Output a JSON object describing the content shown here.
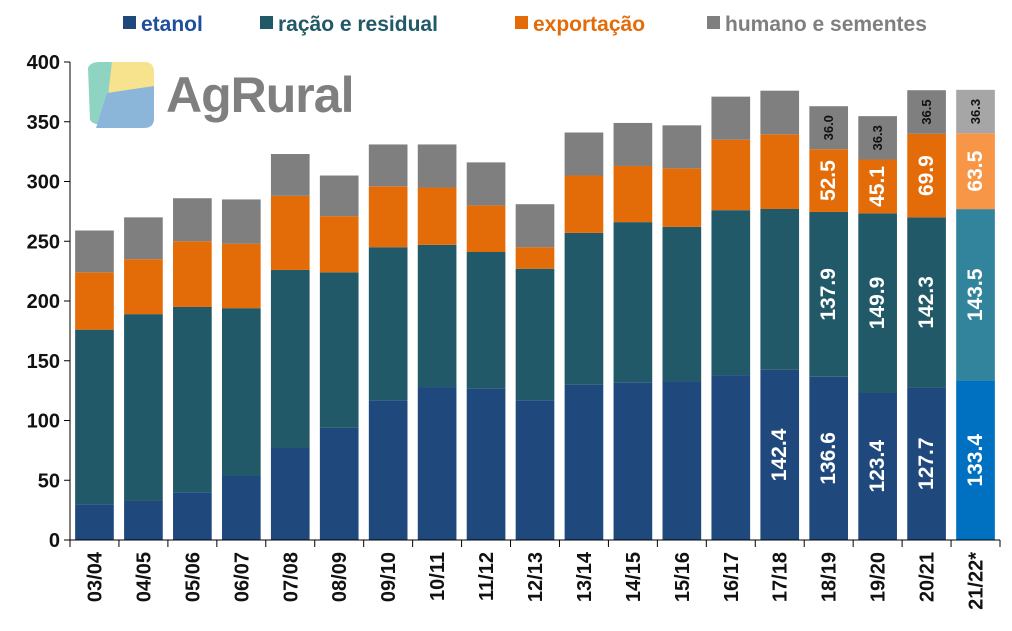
{
  "chart_data": {
    "type": "bar",
    "stacked": true,
    "title": "",
    "xlabel": "",
    "ylabel": "",
    "ylim": [
      0,
      400
    ],
    "yticks": [
      0,
      50,
      100,
      150,
      200,
      250,
      300,
      350,
      400
    ],
    "grid": false,
    "legend_position": "top",
    "categories": [
      "03/04",
      "04/05",
      "05/06",
      "06/07",
      "07/08",
      "08/09",
      "09/10",
      "10/11",
      "11/12",
      "12/13",
      "13/14",
      "14/15",
      "15/16",
      "16/17",
      "17/18",
      "18/19",
      "19/20",
      "20/21",
      "21/22*"
    ],
    "series": [
      {
        "name": "etanol",
        "color": "#1f497d",
        "highlight_color": "#0070c0",
        "values": [
          30,
          33,
          40,
          54,
          77,
          94,
          117,
          128,
          127,
          117,
          130,
          132,
          133,
          138,
          142.4,
          136.6,
          123.4,
          127.7,
          133.4
        ]
      },
      {
        "name": "ração e residual",
        "color": "#215968",
        "highlight_color": "#31849b",
        "values": [
          146,
          156,
          155,
          140,
          149,
          130,
          128,
          119,
          114,
          110,
          127,
          134,
          129,
          138,
          134.6,
          137.9,
          149.9,
          142.3,
          143.5
        ]
      },
      {
        "name": "exportação",
        "color": "#e36c09",
        "highlight_color": "#f79646",
        "values": [
          48,
          46,
          55,
          54,
          62,
          47,
          51,
          48,
          39,
          18,
          48,
          47,
          49,
          59,
          62.5,
          52.5,
          45.1,
          69.9,
          63.5
        ]
      },
      {
        "name": "humano e sementes",
        "color": "#7f7f7f",
        "highlight_color": "#a6a6a6",
        "values": [
          35,
          35,
          36,
          37,
          35,
          34,
          35,
          36,
          36,
          36,
          36,
          36,
          36,
          36,
          36.5,
          36.0,
          36.3,
          36.5,
          36.3
        ]
      }
    ],
    "highlight_category": "21/22*",
    "data_labels": [
      {
        "category": "17/18",
        "series": "etanol",
        "text": "142.4"
      },
      {
        "category": "18/19",
        "series": "etanol",
        "text": "136.6"
      },
      {
        "category": "18/19",
        "series": "ração e residual",
        "text": "137.9"
      },
      {
        "category": "18/19",
        "series": "exportação",
        "text": "52.5"
      },
      {
        "category": "18/19",
        "series": "humano e sementes",
        "text": "36.0"
      },
      {
        "category": "19/20",
        "series": "etanol",
        "text": "123.4"
      },
      {
        "category": "19/20",
        "series": "ração e residual",
        "text": "149.9"
      },
      {
        "category": "19/20",
        "series": "exportação",
        "text": "45.1"
      },
      {
        "category": "19/20",
        "series": "humano e sementes",
        "text": "36.3"
      },
      {
        "category": "20/21",
        "series": "etanol",
        "text": "127.7"
      },
      {
        "category": "20/21",
        "series": "ração e residual",
        "text": "142.3"
      },
      {
        "category": "20/21",
        "series": "exportação",
        "text": "69.9"
      },
      {
        "category": "20/21",
        "series": "humano e sementes",
        "text": "36.5"
      },
      {
        "category": "21/22*",
        "series": "etanol",
        "text": "133.4"
      },
      {
        "category": "21/22*",
        "series": "ração e residual",
        "text": "143.5"
      },
      {
        "category": "21/22*",
        "series": "exportação",
        "text": "63.5"
      },
      {
        "category": "21/22*",
        "series": "humano e sementes",
        "text": "36.3"
      }
    ]
  },
  "logo": {
    "text": "AgRural",
    "colors": [
      "#8fd3c3",
      "#f7e38d",
      "#8bb6da"
    ]
  }
}
